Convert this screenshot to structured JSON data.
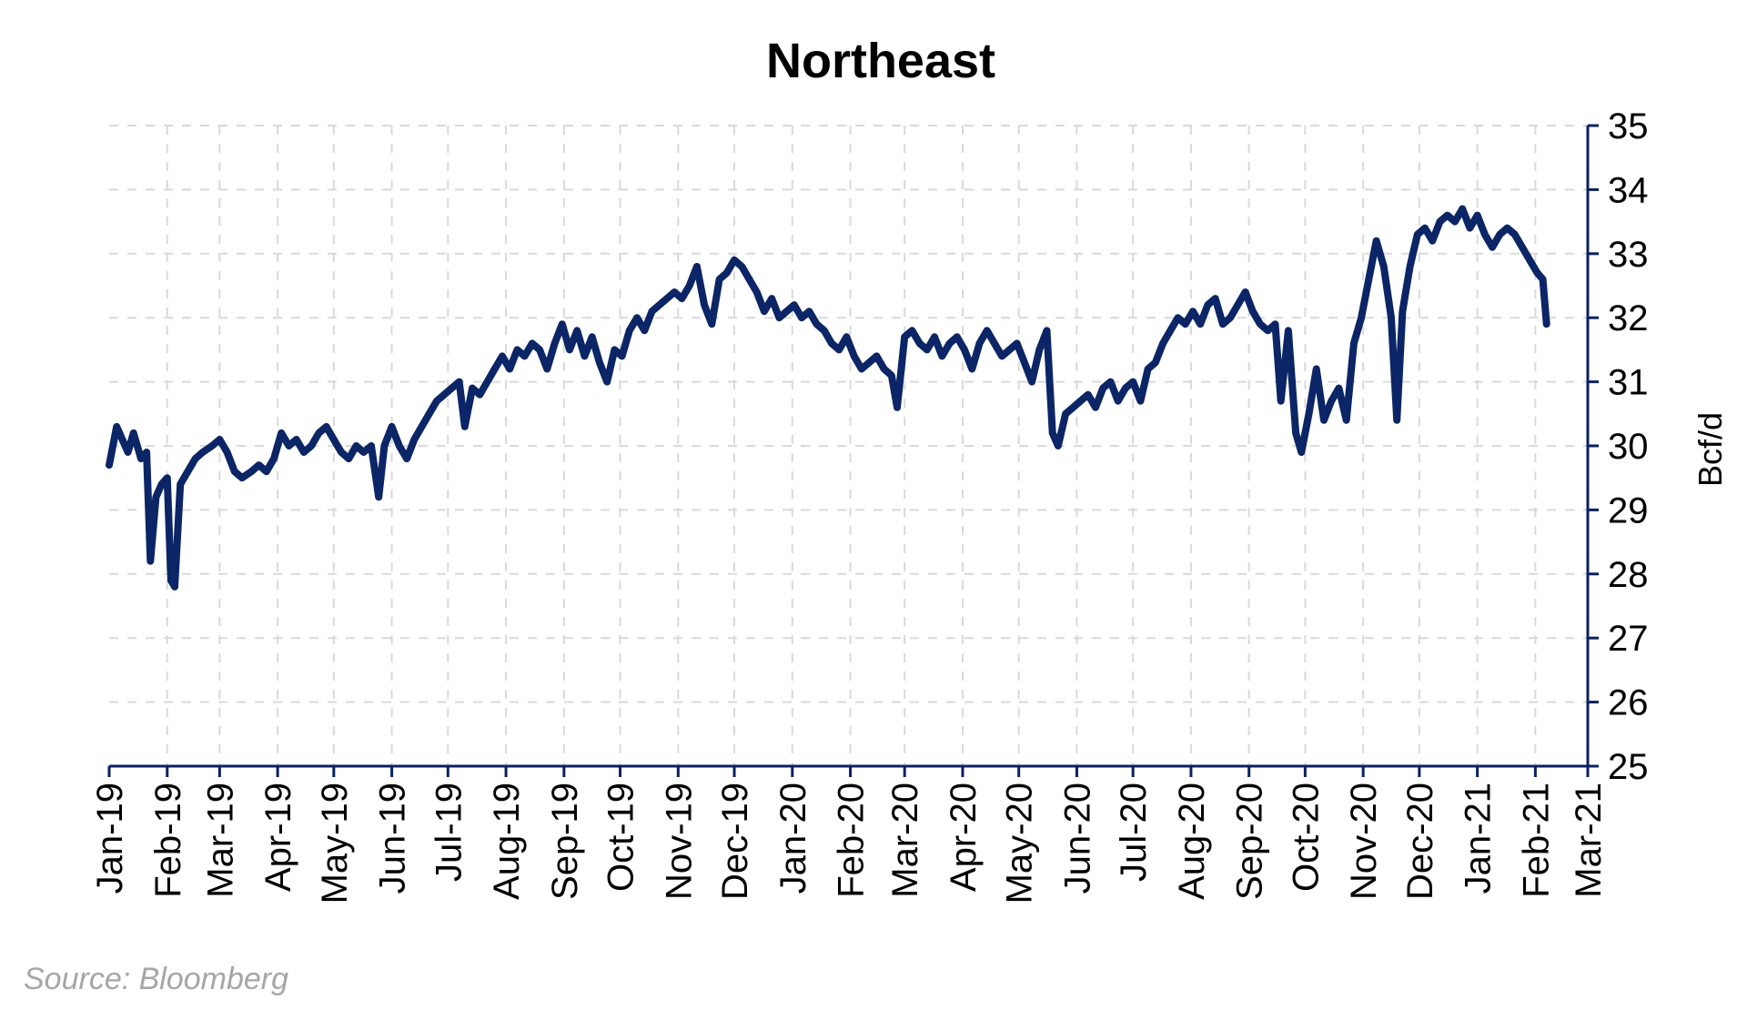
{
  "chart_data": {
    "type": "line",
    "title": "Northeast",
    "ylabel": "Bcf/d",
    "xlabel": "",
    "ylim": [
      25,
      35
    ],
    "yticks": [
      25,
      26,
      27,
      28,
      29,
      30,
      31,
      32,
      33,
      34,
      35
    ],
    "y_axis_side": "right",
    "grid": true,
    "legend": "none",
    "x_tick_labels": [
      "Jan-19",
      "Feb-19",
      "Mar-19",
      "Apr-19",
      "May-19",
      "Jun-19",
      "Jul-19",
      "Aug-19",
      "Sep-19",
      "Oct-19",
      "Nov-19",
      "Dec-19",
      "Jan-20",
      "Feb-20",
      "Mar-20",
      "Apr-20",
      "May-20",
      "Jun-20",
      "Jul-20",
      "Aug-20",
      "Sep-20",
      "Oct-20",
      "Nov-20",
      "Dec-20",
      "Jan-21",
      "Feb-21",
      "Mar-21"
    ],
    "series": [
      {
        "color": "#0b2566",
        "points": [
          [
            "2019-01-01",
            29.7
          ],
          [
            "2019-01-05",
            30.3
          ],
          [
            "2019-01-08",
            30.1
          ],
          [
            "2019-01-11",
            29.9
          ],
          [
            "2019-01-14",
            30.2
          ],
          [
            "2019-01-18",
            29.8
          ],
          [
            "2019-01-21",
            29.9
          ],
          [
            "2019-01-23",
            28.2
          ],
          [
            "2019-01-26",
            29.2
          ],
          [
            "2019-01-29",
            29.4
          ],
          [
            "2019-02-01",
            29.5
          ],
          [
            "2019-02-03",
            27.9
          ],
          [
            "2019-02-05",
            27.8
          ],
          [
            "2019-02-08",
            29.4
          ],
          [
            "2019-02-12",
            29.6
          ],
          [
            "2019-02-16",
            29.8
          ],
          [
            "2019-02-20",
            29.9
          ],
          [
            "2019-02-25",
            30.0
          ],
          [
            "2019-03-01",
            30.1
          ],
          [
            "2019-03-05",
            29.9
          ],
          [
            "2019-03-09",
            29.6
          ],
          [
            "2019-03-13",
            29.5
          ],
          [
            "2019-03-18",
            29.6
          ],
          [
            "2019-03-22",
            29.7
          ],
          [
            "2019-03-26",
            29.6
          ],
          [
            "2019-03-30",
            29.8
          ],
          [
            "2019-04-03",
            30.2
          ],
          [
            "2019-04-07",
            30.0
          ],
          [
            "2019-04-11",
            30.1
          ],
          [
            "2019-04-15",
            29.9
          ],
          [
            "2019-04-19",
            30.0
          ],
          [
            "2019-04-23",
            30.2
          ],
          [
            "2019-04-27",
            30.3
          ],
          [
            "2019-05-01",
            30.1
          ],
          [
            "2019-05-05",
            29.9
          ],
          [
            "2019-05-09",
            29.8
          ],
          [
            "2019-05-13",
            30.0
          ],
          [
            "2019-05-17",
            29.9
          ],
          [
            "2019-05-21",
            30.0
          ],
          [
            "2019-05-25",
            29.2
          ],
          [
            "2019-05-28",
            30.0
          ],
          [
            "2019-06-01",
            30.3
          ],
          [
            "2019-06-05",
            30.0
          ],
          [
            "2019-06-09",
            29.8
          ],
          [
            "2019-06-13",
            30.1
          ],
          [
            "2019-06-17",
            30.3
          ],
          [
            "2019-06-21",
            30.5
          ],
          [
            "2019-06-25",
            30.7
          ],
          [
            "2019-06-29",
            30.8
          ],
          [
            "2019-07-03",
            30.9
          ],
          [
            "2019-07-07",
            31.0
          ],
          [
            "2019-07-10",
            30.3
          ],
          [
            "2019-07-14",
            30.9
          ],
          [
            "2019-07-18",
            30.8
          ],
          [
            "2019-07-22",
            31.0
          ],
          [
            "2019-07-26",
            31.2
          ],
          [
            "2019-07-30",
            31.4
          ],
          [
            "2019-08-03",
            31.2
          ],
          [
            "2019-08-07",
            31.5
          ],
          [
            "2019-08-11",
            31.4
          ],
          [
            "2019-08-15",
            31.6
          ],
          [
            "2019-08-19",
            31.5
          ],
          [
            "2019-08-23",
            31.2
          ],
          [
            "2019-08-27",
            31.6
          ],
          [
            "2019-08-31",
            31.9
          ],
          [
            "2019-09-04",
            31.5
          ],
          [
            "2019-09-08",
            31.8
          ],
          [
            "2019-09-12",
            31.4
          ],
          [
            "2019-09-16",
            31.7
          ],
          [
            "2019-09-20",
            31.3
          ],
          [
            "2019-09-24",
            31.0
          ],
          [
            "2019-09-28",
            31.5
          ],
          [
            "2019-10-02",
            31.4
          ],
          [
            "2019-10-06",
            31.8
          ],
          [
            "2019-10-10",
            32.0
          ],
          [
            "2019-10-14",
            31.8
          ],
          [
            "2019-10-18",
            32.1
          ],
          [
            "2019-10-22",
            32.2
          ],
          [
            "2019-10-26",
            32.3
          ],
          [
            "2019-10-30",
            32.4
          ],
          [
            "2019-11-03",
            32.3
          ],
          [
            "2019-11-07",
            32.5
          ],
          [
            "2019-11-11",
            32.8
          ],
          [
            "2019-11-15",
            32.2
          ],
          [
            "2019-11-19",
            31.9
          ],
          [
            "2019-11-23",
            32.6
          ],
          [
            "2019-11-27",
            32.7
          ],
          [
            "2019-12-01",
            32.9
          ],
          [
            "2019-12-05",
            32.8
          ],
          [
            "2019-12-09",
            32.6
          ],
          [
            "2019-12-13",
            32.4
          ],
          [
            "2019-12-17",
            32.1
          ],
          [
            "2019-12-21",
            32.3
          ],
          [
            "2019-12-25",
            32.0
          ],
          [
            "2019-12-29",
            32.1
          ],
          [
            "2020-01-02",
            32.2
          ],
          [
            "2020-01-06",
            32.0
          ],
          [
            "2020-01-10",
            32.1
          ],
          [
            "2020-01-14",
            31.9
          ],
          [
            "2020-01-18",
            31.8
          ],
          [
            "2020-01-22",
            31.6
          ],
          [
            "2020-01-26",
            31.5
          ],
          [
            "2020-01-30",
            31.7
          ],
          [
            "2020-02-03",
            31.4
          ],
          [
            "2020-02-07",
            31.2
          ],
          [
            "2020-02-11",
            31.3
          ],
          [
            "2020-02-15",
            31.4
          ],
          [
            "2020-02-19",
            31.2
          ],
          [
            "2020-02-23",
            31.1
          ],
          [
            "2020-02-26",
            30.6
          ],
          [
            "2020-03-01",
            31.7
          ],
          [
            "2020-03-05",
            31.8
          ],
          [
            "2020-03-09",
            31.6
          ],
          [
            "2020-03-13",
            31.5
          ],
          [
            "2020-03-17",
            31.7
          ],
          [
            "2020-03-21",
            31.4
          ],
          [
            "2020-03-25",
            31.6
          ],
          [
            "2020-03-29",
            31.7
          ],
          [
            "2020-04-02",
            31.5
          ],
          [
            "2020-04-06",
            31.2
          ],
          [
            "2020-04-10",
            31.6
          ],
          [
            "2020-04-14",
            31.8
          ],
          [
            "2020-04-18",
            31.6
          ],
          [
            "2020-04-22",
            31.4
          ],
          [
            "2020-04-26",
            31.5
          ],
          [
            "2020-04-30",
            31.6
          ],
          [
            "2020-05-04",
            31.3
          ],
          [
            "2020-05-08",
            31.0
          ],
          [
            "2020-05-12",
            31.5
          ],
          [
            "2020-05-16",
            31.8
          ],
          [
            "2020-05-19",
            30.2
          ],
          [
            "2020-05-22",
            30.0
          ],
          [
            "2020-05-26",
            30.5
          ],
          [
            "2020-05-30",
            30.6
          ],
          [
            "2020-06-03",
            30.7
          ],
          [
            "2020-06-07",
            30.8
          ],
          [
            "2020-06-11",
            30.6
          ],
          [
            "2020-06-15",
            30.9
          ],
          [
            "2020-06-19",
            31.0
          ],
          [
            "2020-06-23",
            30.7
          ],
          [
            "2020-06-27",
            30.9
          ],
          [
            "2020-07-01",
            31.0
          ],
          [
            "2020-07-05",
            30.7
          ],
          [
            "2020-07-09",
            31.2
          ],
          [
            "2020-07-13",
            31.3
          ],
          [
            "2020-07-17",
            31.6
          ],
          [
            "2020-07-21",
            31.8
          ],
          [
            "2020-07-25",
            32.0
          ],
          [
            "2020-07-29",
            31.9
          ],
          [
            "2020-08-02",
            32.1
          ],
          [
            "2020-08-06",
            31.9
          ],
          [
            "2020-08-10",
            32.2
          ],
          [
            "2020-08-14",
            32.3
          ],
          [
            "2020-08-18",
            31.9
          ],
          [
            "2020-08-22",
            32.0
          ],
          [
            "2020-08-26",
            32.2
          ],
          [
            "2020-08-30",
            32.4
          ],
          [
            "2020-09-03",
            32.1
          ],
          [
            "2020-09-07",
            31.9
          ],
          [
            "2020-09-11",
            31.8
          ],
          [
            "2020-09-15",
            31.9
          ],
          [
            "2020-09-18",
            30.7
          ],
          [
            "2020-09-22",
            31.8
          ],
          [
            "2020-09-26",
            30.2
          ],
          [
            "2020-09-29",
            29.9
          ],
          [
            "2020-10-03",
            30.5
          ],
          [
            "2020-10-07",
            31.2
          ],
          [
            "2020-10-11",
            30.4
          ],
          [
            "2020-10-15",
            30.7
          ],
          [
            "2020-10-19",
            30.9
          ],
          [
            "2020-10-23",
            30.4
          ],
          [
            "2020-10-27",
            31.6
          ],
          [
            "2020-10-31",
            32.0
          ],
          [
            "2020-11-04",
            32.6
          ],
          [
            "2020-11-08",
            33.2
          ],
          [
            "2020-11-12",
            32.8
          ],
          [
            "2020-11-16",
            32.0
          ],
          [
            "2020-11-19",
            30.4
          ],
          [
            "2020-11-22",
            32.1
          ],
          [
            "2020-11-26",
            32.8
          ],
          [
            "2020-11-30",
            33.3
          ],
          [
            "2020-12-04",
            33.4
          ],
          [
            "2020-12-08",
            33.2
          ],
          [
            "2020-12-12",
            33.5
          ],
          [
            "2020-12-16",
            33.6
          ],
          [
            "2020-12-20",
            33.5
          ],
          [
            "2020-12-24",
            33.7
          ],
          [
            "2020-12-28",
            33.4
          ],
          [
            "2021-01-01",
            33.6
          ],
          [
            "2021-01-05",
            33.3
          ],
          [
            "2021-01-09",
            33.1
          ],
          [
            "2021-01-13",
            33.3
          ],
          [
            "2021-01-17",
            33.4
          ],
          [
            "2021-01-21",
            33.3
          ],
          [
            "2021-01-25",
            33.1
          ],
          [
            "2021-01-29",
            32.9
          ],
          [
            "2021-02-02",
            32.7
          ],
          [
            "2021-02-05",
            32.6
          ],
          [
            "2021-02-07",
            31.9
          ]
        ]
      }
    ],
    "source": "Source: Bloomberg"
  }
}
